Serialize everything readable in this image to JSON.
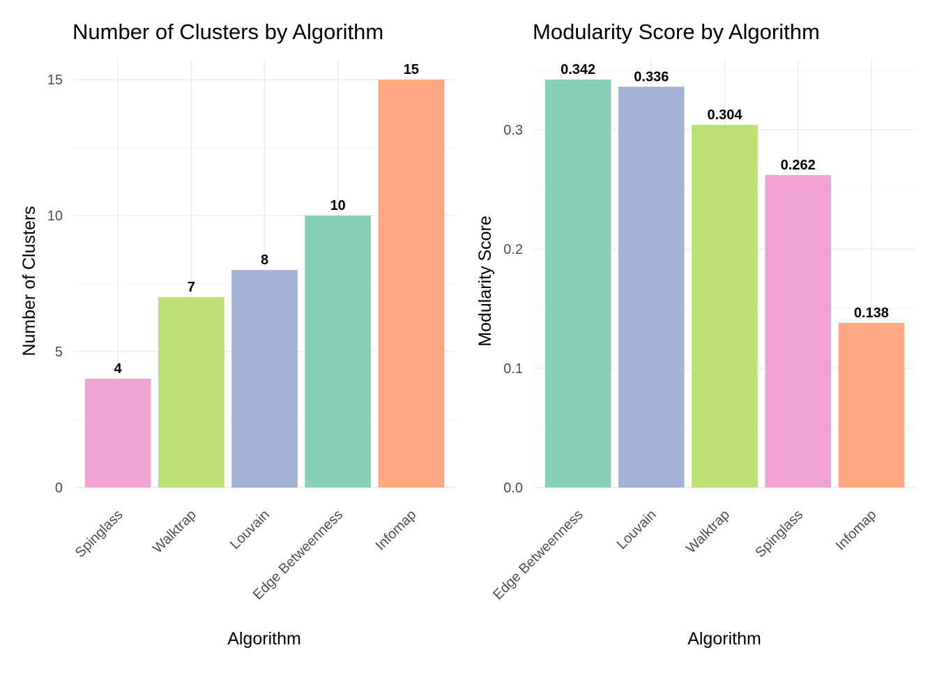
{
  "chart_data": [
    {
      "type": "bar",
      "title": "Number of Clusters by Algorithm",
      "xlabel": "Algorithm",
      "ylabel": "Number of Clusters",
      "categories": [
        "Spinglass",
        "Walktrap",
        "Louvain",
        "Edge Betweenness",
        "Infomap"
      ],
      "values": [
        4,
        7,
        8,
        10,
        15
      ],
      "value_labels": [
        "4",
        "7",
        "8",
        "10",
        "15"
      ],
      "colors": [
        "#eea3d2",
        "#bde074",
        "#a3b2d6",
        "#87cfb7",
        "#fda881"
      ],
      "ylim": [
        0,
        15.75
      ],
      "yticks": [
        0,
        5,
        10,
        15
      ],
      "ytick_labels": [
        "0",
        "5",
        "10",
        "15"
      ],
      "yticks_minor": [
        2.5,
        7.5,
        12.5
      ],
      "grid": true,
      "legend": "none"
    },
    {
      "type": "bar",
      "title": "Modularity Score by Algorithm",
      "xlabel": "Algorithm",
      "ylabel": "Modularity Score",
      "categories": [
        "Edge Betweenness",
        "Louvain",
        "Walktrap",
        "Spinglass",
        "Infomap"
      ],
      "values": [
        0.342,
        0.336,
        0.304,
        0.262,
        0.138
      ],
      "value_labels": [
        "0.342",
        "0.336",
        "0.304",
        "0.262",
        "0.138"
      ],
      "colors": [
        "#87cfb7",
        "#a3b2d6",
        "#bde074",
        "#eea3d2",
        "#fda881"
      ],
      "ylim": [
        0,
        0.359
      ],
      "yticks": [
        0,
        0.1,
        0.2,
        0.3
      ],
      "ytick_labels": [
        "0.0",
        "0.1",
        "0.2",
        "0.3"
      ],
      "yticks_minor": [
        0.05,
        0.15,
        0.25,
        0.35
      ],
      "grid": true,
      "legend": "none"
    }
  ]
}
